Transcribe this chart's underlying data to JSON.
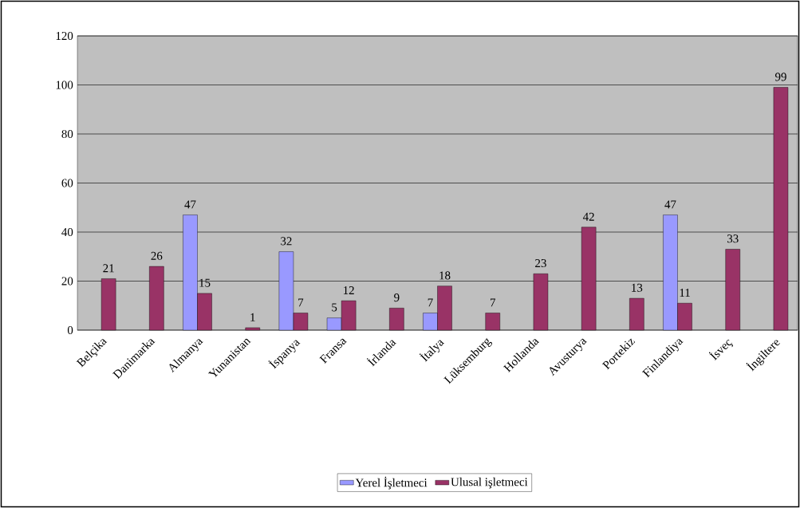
{
  "chart_data": {
    "type": "bar",
    "categories": [
      "Belçika",
      "Danimarka",
      "Almanya",
      "Yunanistan",
      "İspanya",
      "Fransa",
      "İrlanda",
      "İtalya",
      "Lüksemburg",
      "Hollanda",
      "Avusturya",
      "Portekiz",
      "Finlandiya",
      "İsveç",
      "İngiltere"
    ],
    "series": [
      {
        "name": "Yerel İşletmeci",
        "color": "#9999ff",
        "values": [
          null,
          null,
          47,
          null,
          32,
          5,
          null,
          7,
          null,
          null,
          null,
          null,
          47,
          null,
          null
        ]
      },
      {
        "name": "Ulusal işletmeci",
        "color": "#993366",
        "values": [
          21,
          26,
          15,
          1,
          7,
          12,
          9,
          18,
          7,
          23,
          42,
          13,
          11,
          33,
          99
        ]
      }
    ],
    "ylim": [
      0,
      120
    ],
    "yticks": [
      0,
      20,
      40,
      60,
      80,
      100,
      120
    ],
    "grid": "y",
    "legend": "bottom",
    "data_labels": true
  }
}
